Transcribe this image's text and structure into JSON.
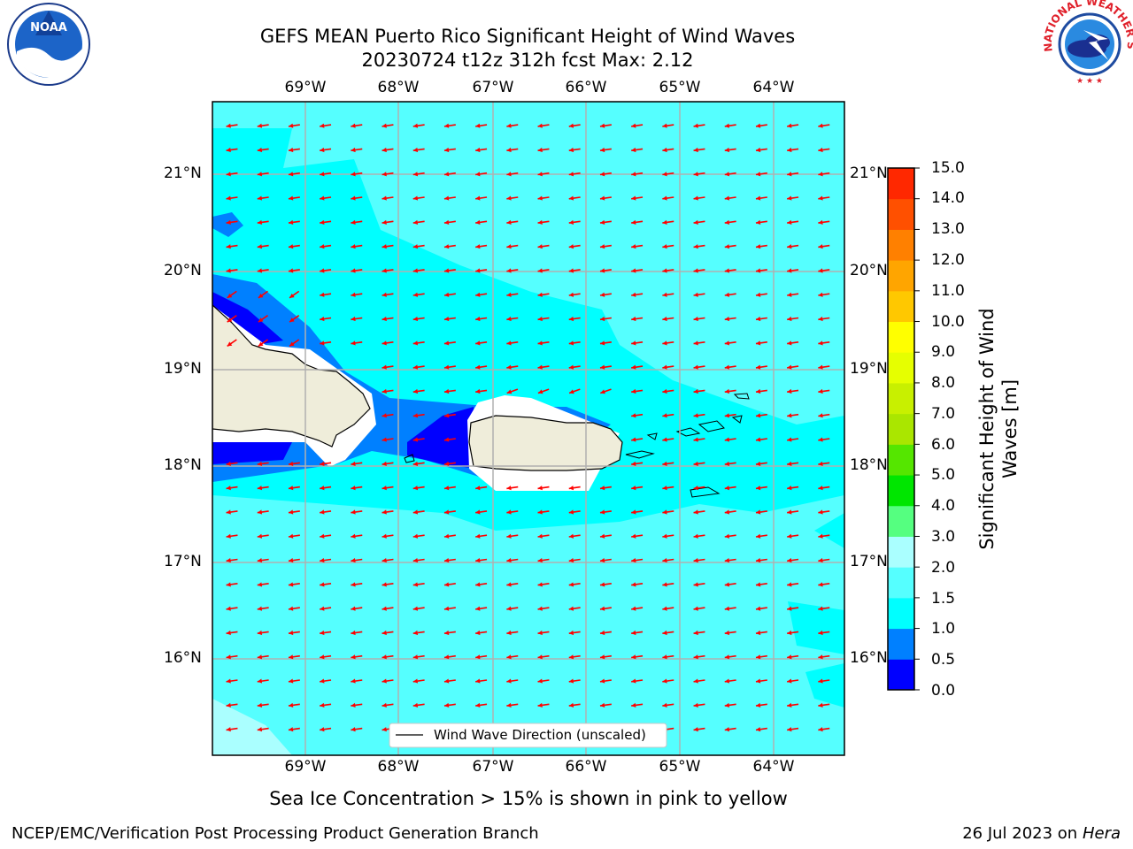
{
  "header": {
    "title_line1": "GEFS MEAN Puerto Rico Significant Height of Wind Waves",
    "title_line2": "20230724 t12z 312h fcst   Max: 2.12"
  },
  "map": {
    "lon_labels": [
      "69°W",
      "68°W",
      "67°W",
      "66°W",
      "65°W",
      "64°W"
    ],
    "lat_labels": [
      "21°N",
      "20°N",
      "19°N",
      "18°N",
      "17°N",
      "16°N"
    ],
    "legend_label": "Wind Wave Direction (unscaled)",
    "ocean_color": "#00ffff",
    "land_color": "#efedda",
    "arrow_color": "#ff0000"
  },
  "colorbar": {
    "title_line1": "Significant Height of Wind",
    "title_line2": "Waves [m]",
    "tick_labels": [
      "15.0",
      "14.0",
      "13.0",
      "12.0",
      "11.0",
      "10.0",
      "9.0",
      "8.0",
      "7.0",
      "6.0",
      "5.0",
      "4.0",
      "3.0",
      "2.0",
      "1.5",
      "1.0",
      "0.5",
      "0.0"
    ],
    "colors": [
      "#0000ff",
      "#0080ff",
      "#00ffff",
      "#55ffff",
      "#aaffff",
      "#55ff80",
      "#00e600",
      "#55e600",
      "#aae600",
      "#c8f000",
      "#e6ff00",
      "#ffff00",
      "#ffc800",
      "#ffa500",
      "#ff8000",
      "#ff5000",
      "#ff2800"
    ]
  },
  "footer": {
    "note": "Sea Ice Concentration > 15% is shown in pink to yellow",
    "left": "NCEP/EMC/Verification Post Processing Product Generation Branch",
    "date": "26 Jul 2023 on",
    "host": "Hera"
  },
  "logos": {
    "noaa_text": "NOAA",
    "nws_text": "NATIONAL WEATHER SERVICE"
  }
}
